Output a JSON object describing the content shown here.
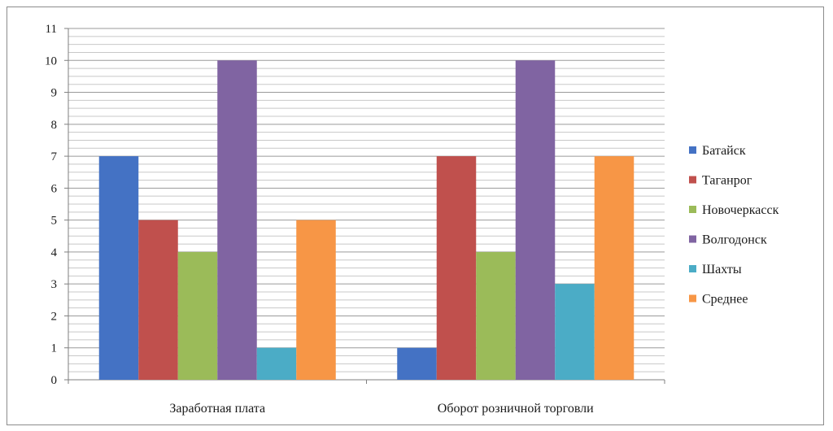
{
  "chart_data": {
    "type": "bar",
    "categories": [
      "Заработная плата",
      "Оборот розничной торговли"
    ],
    "series": [
      {
        "name": "Батайск",
        "values": [
          7,
          1
        ],
        "color": "#4472c4"
      },
      {
        "name": "Таганрог",
        "values": [
          5,
          7
        ],
        "color": "#c0504d"
      },
      {
        "name": "Новочеркасск",
        "values": [
          4,
          4
        ],
        "color": "#9bbb59"
      },
      {
        "name": "Волгодонск",
        "values": [
          10,
          10
        ],
        "color": "#8064a2"
      },
      {
        "name": "Шахты",
        "values": [
          1,
          3
        ],
        "color": "#4bacc6"
      },
      {
        "name": "Среднее",
        "values": [
          5,
          7
        ],
        "color": "#f79646"
      }
    ],
    "yticks": [
      0,
      1,
      2,
      3,
      4,
      5,
      6,
      7,
      8,
      9,
      10,
      11
    ],
    "ylim": [
      0,
      11
    ],
    "grid": true,
    "legend_position": "right"
  }
}
